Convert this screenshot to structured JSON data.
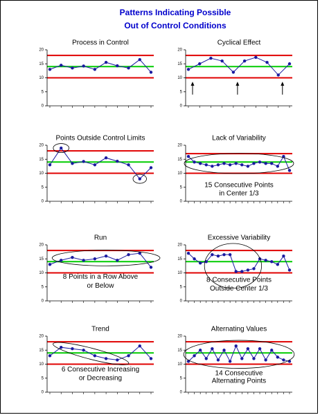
{
  "title": [
    "Patterns Indicating Possible",
    "Out of Control Conditions"
  ],
  "chart_data": [
    {
      "type": "line",
      "title": "Process in Control",
      "values": [
        13,
        14.5,
        13.5,
        14.2,
        13,
        15.5,
        14.3,
        13.5,
        16.5,
        12
      ],
      "color": "#1a1aa0",
      "ylim": [
        0,
        20
      ],
      "yticks": [
        0,
        5,
        10,
        15,
        20
      ],
      "control_limits": [
        {
          "value": 18,
          "color": "#e00000"
        },
        {
          "value": 14,
          "color": "#00cc00"
        },
        {
          "value": 10,
          "color": "#e00000"
        }
      ]
    },
    {
      "type": "line",
      "title": "Cyclical Effect",
      "values": [
        13,
        15,
        17,
        16,
        12,
        16,
        17.3,
        15.5,
        11,
        15
      ],
      "color": "#1a1aa0",
      "ylim": [
        0,
        20
      ],
      "yticks": [
        0,
        5,
        10,
        15,
        20
      ],
      "control_limits": [
        {
          "value": 18,
          "color": "#e00000"
        },
        {
          "value": 14,
          "color": "#00cc00"
        },
        {
          "value": 10,
          "color": "#e00000"
        }
      ]
    },
    {
      "type": "line",
      "title": "Points Outside Control Limits",
      "values": [
        13,
        19,
        13.5,
        14.2,
        13,
        15.5,
        14.3,
        13,
        8,
        12
      ],
      "color": "#1a1aa0",
      "ylim": [
        0,
        20
      ],
      "yticks": [
        0,
        5,
        10,
        15,
        20
      ],
      "control_limits": [
        {
          "value": 18,
          "color": "#e00000"
        },
        {
          "value": 14,
          "color": "#00cc00"
        },
        {
          "value": 10,
          "color": "#e00000"
        }
      ]
    },
    {
      "type": "line",
      "title": "Lack of Variability",
      "values": [
        16,
        14,
        13.5,
        13,
        12.5,
        13,
        13.5,
        13,
        13.5,
        13,
        12.5,
        13.5,
        14,
        13.5,
        13.5,
        12.5,
        16,
        11
      ],
      "color": "#1a1aa0",
      "ylim": [
        0,
        20
      ],
      "yticks": [
        0,
        5,
        10,
        15,
        20
      ],
      "control_limits": [
        {
          "value": 17,
          "color": "#e00000"
        },
        {
          "value": 14,
          "color": "#00cc00"
        },
        {
          "value": 10,
          "color": "#e00000"
        }
      ],
      "annotation": [
        "15 Consecutive Points",
        "in Center 1/3"
      ]
    },
    {
      "type": "line",
      "title": "Run",
      "values": [
        13,
        14.5,
        15.5,
        14.5,
        15,
        16,
        14.5,
        16.5,
        17,
        12
      ],
      "color": "#1a1aa0",
      "ylim": [
        0,
        20
      ],
      "yticks": [
        0,
        5,
        10,
        15,
        20
      ],
      "control_limits": [
        {
          "value": 18,
          "color": "#e00000"
        },
        {
          "value": 14,
          "color": "#00cc00"
        },
        {
          "value": 10,
          "color": "#e00000"
        }
      ],
      "annotation": [
        "8 Points in a Row Above",
        "or Below"
      ]
    },
    {
      "type": "line",
      "title": "Excessive Variability",
      "values": [
        17,
        15,
        13.5,
        14,
        16.5,
        16,
        16.5,
        16.5,
        10.5,
        10.5,
        11,
        11.5,
        15,
        14.5,
        14,
        13,
        16,
        11
      ],
      "color": "#1a1aa0",
      "ylim": [
        0,
        20
      ],
      "yticks": [
        0,
        5,
        10,
        15,
        20
      ],
      "control_limits": [
        {
          "value": 18,
          "color": "#e00000"
        },
        {
          "value": 14,
          "color": "#00cc00"
        },
        {
          "value": 10,
          "color": "#e00000"
        }
      ],
      "annotation": [
        "8 Consecutive Points",
        "Outside Center 1/3"
      ]
    },
    {
      "type": "line",
      "title": "Trend",
      "values": [
        13,
        16,
        15.5,
        15,
        13,
        12,
        11.5,
        13,
        16.5,
        12
      ],
      "color": "#1a1aa0",
      "ylim": [
        0,
        20
      ],
      "yticks": [
        0,
        5,
        10,
        15,
        20
      ],
      "control_limits": [
        {
          "value": 18,
          "color": "#e00000"
        },
        {
          "value": 14,
          "color": "#00cc00"
        },
        {
          "value": 10,
          "color": "#e00000"
        }
      ],
      "annotation": [
        "6 Consecutive Increasing",
        "or Decreasing"
      ]
    },
    {
      "type": "line",
      "title": "Alternating Values",
      "values": [
        11,
        13,
        15,
        12,
        15.5,
        11.5,
        15,
        11,
        16.5,
        12,
        15.5,
        12,
        15.5,
        11.5,
        15,
        12.5,
        11.5,
        11
      ],
      "color": "#1a1aa0",
      "ylim": [
        0,
        20
      ],
      "yticks": [
        0,
        5,
        10,
        15,
        20
      ],
      "control_limits": [
        {
          "value": 18,
          "color": "#e00000"
        },
        {
          "value": 14,
          "color": "#00cc00"
        },
        {
          "value": 10,
          "color": "#e00000"
        }
      ],
      "annotation": [
        "14 Consecutive",
        "Alternating Points"
      ]
    }
  ]
}
